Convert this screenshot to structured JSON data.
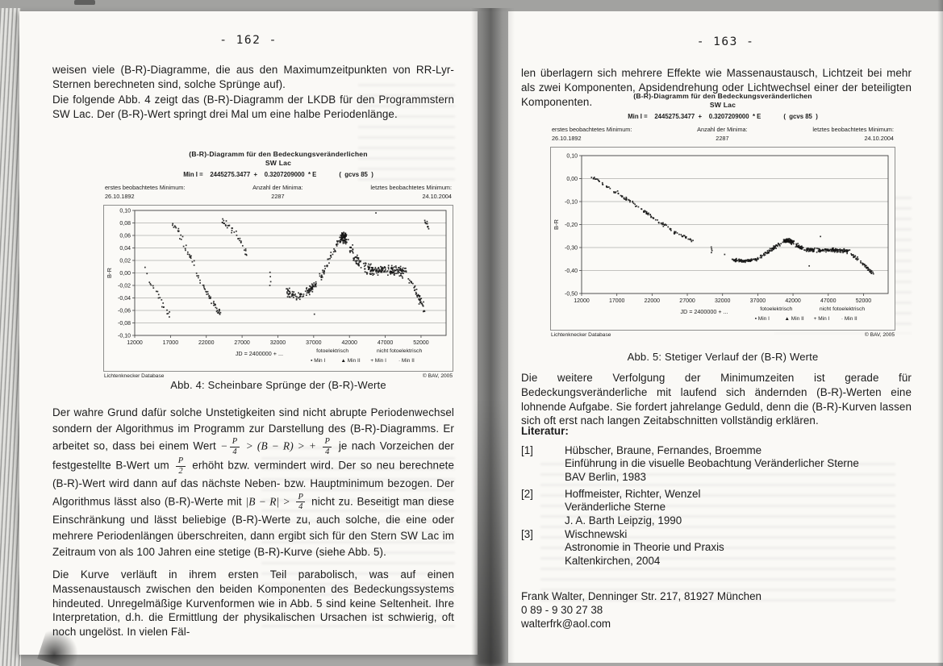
{
  "scan": {
    "left_page": {
      "page_number": "- 162 -",
      "para1": "weisen viele (B-R)-Diagramme, die aus den Maximumzeitpunkten von RR-Lyr-Sternen berechneten sind, solche Sprünge auf).",
      "para2": "Die folgende Abb. 4 zeigt das (B-R)-Diagramm der LKDB für den Programmstern SW Lac. Der (B-R)-Wert springt drei Mal um eine halbe Periodenlänge.",
      "para3": {
        "s1": "Der wahre Grund dafür solche Unstetigkeiten sind nicht abrupte Periodenwechsel sondern der Algorithmus im Programm zur Darstellung des (B-R)-Diagramms. Er arbeitet so, dass bei einem Wert ",
        "minus": "−",
        "p": "P",
        "four": "4",
        "two": "2",
        "cmp": " > (B − R) > + ",
        "s3": " je nach Vorzeichen der festgestellte B-Wert um ",
        "s4": " erhöht bzw. vermindert wird. Der so neu berechnete (B-R)-Wert wird dann auf das nächste Neben- bzw. Hauptminimum bezogen. Der Algorithmus lässt also (B-R)-Werte mit ",
        "abs": "|B − R| > ",
        "s5": " nicht zu. Beseitigt man diese Einschränkung und lässt beliebige (B-R)-Werte zu, auch solche, die eine oder mehrere Periodenlängen überschreiten, dann ergibt sich für den Stern SW Lac im Zeitraum von als 100 Jahren eine stetige (B-R)-Kurve (siehe Abb. 5)."
      },
      "para4": "Die Kurve verläuft in ihrem ersten Teil parabolisch, was auf einen Massenaustausch zwischen den beiden Komponenten des Bedeckungssystems hindeuted. Unregelmäßige Kurvenformen wie in Abb. 5 sind keine Seltenheit. Ihre Interpretation, d.h. die Ermittlung der physikalischen Ursachen ist schwierig, oft noch ungelöst. In vielen Fäl-",
      "figure_caption": "Abb. 4: Scheinbare Sprünge der (B-R)-Werte"
    },
    "right_page": {
      "page_number": "- 163 -",
      "para1": "len überlagern sich mehrere Effekte wie Massenaustausch, Lichtzeit bei mehr als zwei Komponenten, Apsidendrehung oder Lichtwechsel einer der beteiligten Komponenten.",
      "figure_caption": "Abb. 5: Stetiger Verlauf  der (B-R) Werte",
      "para2": "Die weitere Verfolgung der Minimumzeiten ist gerade für Bedeckungsveränderliche mit laufend sich ändernden (B-R)-Werten eine lohnende Aufgabe. Sie fordert jahrelange Geduld, denn die (B-R)-Kurven lassen sich oft erst nach langen Zeitabschnitten vollständig erklären.",
      "literature_heading": "Literatur:",
      "literature": [
        {
          "num": "[1]",
          "line1": "Hübscher, Braune, Fernandes, Broemme",
          "line2": "Einführung in die visuelle Beobachtung Veränderlicher Sterne",
          "line3": "BAV Berlin, 1983"
        },
        {
          "num": "[2]",
          "line1": "Hoffmeister, Richter, Wenzel",
          "line2": "Veränderliche Sterne",
          "line3": "J. A. Barth Leipzig, 1990"
        },
        {
          "num": "[3]",
          "line1": "Wischnewski",
          "line2": "Astronomie in Theorie und Praxis",
          "line3": "Kaltenkirchen, 2004"
        }
      ],
      "contact": {
        "line1": "Frank Walter, Denninger Str. 217, 81927 München",
        "line2": "0 89 - 9 30 27 38",
        "line3": "walterfrk@aol.com"
      }
    }
  },
  "chart_labels": {
    "title1": "(B-R)-Diagramm für den Bedeckungsveränderlichen",
    "title2": "SW Lac",
    "formula": "Min I =    2445275.3477  +    0.3207209000  * E",
    "formula_note": "(  gcvs 85  )",
    "first_label": "erstes beobachtetes Minimum:",
    "first_value": "26.10.1892",
    "count_label": "Anzahl der Minima:",
    "count_value": "2287",
    "last_label": "letztes beobachtetes Minimum:",
    "last_value": "24.10.2004",
    "source": "Lichtenknecker Database",
    "copyright": "© BAV, 2005"
  },
  "chart_data": [
    {
      "id": "abb4",
      "type": "scatter",
      "title": "(B-R)-Diagramm für den Bedeckungsveränderlichen SW Lac — Abb. 4",
      "xlabel": "JD = 2400000 + ...",
      "ylabel": "B-R",
      "xlim": [
        12000,
        55500
      ],
      "ylim": [
        -0.1,
        0.1
      ],
      "xticks": [
        12000,
        17000,
        22000,
        27000,
        32000,
        37000,
        42000,
        47000,
        52000
      ],
      "yticks": [
        {
          "v": 0.1,
          "label": "0,10"
        },
        {
          "v": 0.08,
          "label": "0,08"
        },
        {
          "v": 0.06,
          "label": "0,06"
        },
        {
          "v": 0.04,
          "label": "0,04"
        },
        {
          "v": 0.02,
          "label": "0,02"
        },
        {
          "v": 0.0,
          "label": "0,00"
        },
        {
          "v": -0.02,
          "label": "-0,02"
        },
        {
          "v": -0.04,
          "label": "-0,04"
        },
        {
          "v": -0.06,
          "label": "-0,06"
        },
        {
          "v": -0.08,
          "label": "-0,08"
        },
        {
          "v": -0.1,
          "label": "-0,10"
        }
      ],
      "legend": {
        "groups": [
          {
            "label": "fotoelektrisch",
            "items": [
              {
                "marker": "▪",
                "label": "Min I"
              },
              {
                "marker": "▲",
                "label": "Min II"
              }
            ]
          },
          {
            "label": "nicht fotoelektrisch",
            "items": [
              {
                "marker": "+",
                "label": "Min I"
              },
              {
                "marker": "·",
                "label": "Min II"
              }
            ]
          }
        ]
      },
      "series": [
        {
          "name": "descent-1",
          "anchors": [
            [
              13200,
              0.012
            ],
            [
              14200,
              -0.018
            ],
            [
              15000,
              -0.032
            ],
            [
              15700,
              -0.046
            ],
            [
              16300,
              -0.058
            ],
            [
              16900,
              -0.068
            ]
          ],
          "n": 22,
          "jx": 250,
          "jy": 0.006
        },
        {
          "name": "descent-2",
          "anchors": [
            [
              17300,
              0.08
            ],
            [
              18000,
              0.066
            ],
            [
              18700,
              0.052
            ],
            [
              19400,
              0.036
            ],
            [
              20100,
              0.018
            ],
            [
              20800,
              -0.004
            ],
            [
              21500,
              -0.022
            ],
            [
              22200,
              -0.034
            ],
            [
              22900,
              -0.046
            ],
            [
              23500,
              -0.056
            ],
            [
              24000,
              -0.066
            ]
          ],
          "n": 70,
          "jx": 250,
          "jy": 0.006
        },
        {
          "name": "descent-3",
          "anchors": [
            [
              24300,
              0.084
            ],
            [
              25000,
              0.076
            ],
            [
              25800,
              0.068
            ],
            [
              26600,
              0.058
            ],
            [
              27100,
              0.048
            ],
            [
              27500,
              0.034
            ],
            [
              27700,
              0.022
            ]
          ],
          "n": 34,
          "jx": 200,
          "jy": 0.006
        },
        {
          "name": "isolated-31000",
          "points": [
            [
              30900,
              0.001
            ],
            [
              30950,
              -0.006
            ],
            [
              31000,
              -0.014
            ],
            [
              30880,
              -0.02
            ]
          ]
        },
        {
          "name": "flat-minus-0.04",
          "anchors": [
            [
              33200,
              -0.03
            ],
            [
              34000,
              -0.036
            ],
            [
              35000,
              -0.038
            ],
            [
              36000,
              -0.033
            ],
            [
              36700,
              -0.026
            ],
            [
              37300,
              -0.019
            ]
          ],
          "n": 95,
          "jx": 300,
          "jy": 0.007
        },
        {
          "name": "rise",
          "anchors": [
            [
              37700,
              -0.012
            ],
            [
              38300,
              0.0
            ],
            [
              38900,
              0.013
            ],
            [
              39500,
              0.028
            ],
            [
              40100,
              0.042
            ],
            [
              40600,
              0.051
            ]
          ],
          "n": 45,
          "jx": 250,
          "jy": 0.008
        },
        {
          "name": "peak",
          "anchors": [
            [
              40800,
              0.054
            ],
            [
              41200,
              0.058
            ],
            [
              41600,
              0.053
            ]
          ],
          "n": 85,
          "jx": 350,
          "jy": 0.01
        },
        {
          "name": "after-peak",
          "anchors": [
            [
              42000,
              0.043
            ],
            [
              42500,
              0.031
            ],
            [
              43000,
              0.021
            ],
            [
              43500,
              0.014
            ]
          ],
          "n": 42,
          "jx": 250,
          "jy": 0.008
        },
        {
          "name": "plateau",
          "anchors": [
            [
              44000,
              0.009
            ],
            [
              45000,
              0.006
            ],
            [
              46000,
              0.004
            ],
            [
              47000,
              0.006
            ],
            [
              48000,
              0.004
            ],
            [
              49000,
              0.002
            ],
            [
              49800,
              0.0
            ]
          ],
          "n": 170,
          "jx": 350,
          "jy": 0.009
        },
        {
          "name": "tail-down",
          "anchors": [
            [
              50300,
              -0.008
            ],
            [
              50800,
              -0.018
            ],
            [
              51300,
              -0.03
            ],
            [
              51800,
              -0.041
            ],
            [
              52200,
              -0.052
            ],
            [
              52600,
              -0.064
            ]
          ],
          "n": 45,
          "jx": 220,
          "jy": 0.007
        },
        {
          "name": "jump-top-right",
          "anchors": [
            [
              52400,
              0.083
            ],
            [
              52800,
              0.078
            ],
            [
              53100,
              0.072
            ]
          ],
          "n": 10,
          "jx": 150,
          "jy": 0.005
        },
        {
          "name": "outliers",
          "points": [
            [
              45700,
              0.096
            ],
            [
              37100,
              -0.066
            ]
          ]
        }
      ]
    },
    {
      "id": "abb5",
      "type": "scatter",
      "title": "(B-R)-Diagramm für den Bedeckungsveränderlichen SW Lac — Abb. 5",
      "xlabel": "JD = 2400000 + ...",
      "ylabel": "B-R",
      "xlim": [
        12000,
        55500
      ],
      "ylim": [
        -0.5,
        0.1
      ],
      "xticks": [
        12000,
        17000,
        22000,
        27000,
        32000,
        37000,
        42000,
        47000,
        52000
      ],
      "yticks": [
        {
          "v": 0.1,
          "label": "0,10"
        },
        {
          "v": 0.0,
          "label": "0,00"
        },
        {
          "v": -0.1,
          "label": "-0,10"
        },
        {
          "v": -0.2,
          "label": "-0,20"
        },
        {
          "v": -0.3,
          "label": "-0,30"
        },
        {
          "v": -0.4,
          "label": "-0,40"
        },
        {
          "v": -0.5,
          "label": "-0,50"
        }
      ],
      "legend": {
        "groups": [
          {
            "label": "fotoelektrisch",
            "items": [
              {
                "marker": "▪",
                "label": "Min I"
              },
              {
                "marker": "▲",
                "label": "Min II"
              }
            ]
          },
          {
            "label": "nicht fotoelektrisch",
            "items": [
              {
                "marker": "+",
                "label": "Min I"
              },
              {
                "marker": "·",
                "label": "Min II"
              }
            ]
          }
        ]
      },
      "series": [
        {
          "name": "long-descent",
          "anchors": [
            [
              13400,
              0.01
            ],
            [
              14200,
              -0.006
            ],
            [
              15200,
              -0.026
            ],
            [
              16200,
              -0.046
            ],
            [
              17200,
              -0.066
            ],
            [
              18200,
              -0.086
            ],
            [
              19200,
              -0.106
            ],
            [
              20200,
              -0.127
            ],
            [
              21200,
              -0.149
            ],
            [
              22200,
              -0.171
            ],
            [
              23200,
              -0.192
            ],
            [
              24200,
              -0.213
            ],
            [
              25200,
              -0.232
            ],
            [
              26200,
              -0.249
            ],
            [
              27200,
              -0.263
            ],
            [
              27900,
              -0.272
            ]
          ],
          "n": 120,
          "jx": 250,
          "jy": 0.006
        },
        {
          "name": "isolated-30500",
          "points": [
            [
              30400,
              -0.298
            ],
            [
              30450,
              -0.306
            ],
            [
              30500,
              -0.313
            ],
            [
              30420,
              -0.322
            ]
          ]
        },
        {
          "name": "flat-low",
          "anchors": [
            [
              33400,
              -0.352
            ],
            [
              34200,
              -0.357
            ],
            [
              35200,
              -0.358
            ],
            [
              36200,
              -0.354
            ],
            [
              36900,
              -0.349
            ]
          ],
          "n": 85,
          "jx": 300,
          "jy": 0.007
        },
        {
          "name": "rise-to-bump",
          "anchors": [
            [
              37300,
              -0.341
            ],
            [
              37900,
              -0.33
            ],
            [
              38500,
              -0.318
            ],
            [
              39100,
              -0.306
            ],
            [
              39700,
              -0.293
            ],
            [
              40300,
              -0.281
            ]
          ],
          "n": 55,
          "jx": 250,
          "jy": 0.008
        },
        {
          "name": "bump",
          "anchors": [
            [
              40700,
              -0.273
            ],
            [
              41100,
              -0.268
            ],
            [
              41600,
              -0.271
            ],
            [
              42000,
              -0.279
            ]
          ],
          "n": 90,
          "jx": 350,
          "jy": 0.009
        },
        {
          "name": "down-to-plateau",
          "anchors": [
            [
              42400,
              -0.289
            ],
            [
              42900,
              -0.298
            ],
            [
              43400,
              -0.304
            ]
          ],
          "n": 40,
          "jx": 250,
          "jy": 0.008
        },
        {
          "name": "plateau",
          "anchors": [
            [
              43900,
              -0.308
            ],
            [
              45000,
              -0.311
            ],
            [
              46200,
              -0.313
            ],
            [
              47400,
              -0.311
            ],
            [
              48600,
              -0.313
            ],
            [
              49800,
              -0.317
            ]
          ],
          "n": 160,
          "jx": 380,
          "jy": 0.009
        },
        {
          "name": "tail",
          "anchors": [
            [
              50300,
              -0.329
            ],
            [
              50900,
              -0.344
            ],
            [
              51500,
              -0.361
            ],
            [
              52100,
              -0.377
            ],
            [
              52600,
              -0.391
            ],
            [
              53100,
              -0.404
            ],
            [
              53400,
              -0.413
            ]
          ],
          "n": 50,
          "jx": 220,
          "jy": 0.006
        },
        {
          "name": "outliers",
          "points": [
            [
              45900,
              -0.252
            ],
            [
              44300,
              -0.38
            ],
            [
              32300,
              -0.33
            ]
          ]
        }
      ]
    }
  ]
}
